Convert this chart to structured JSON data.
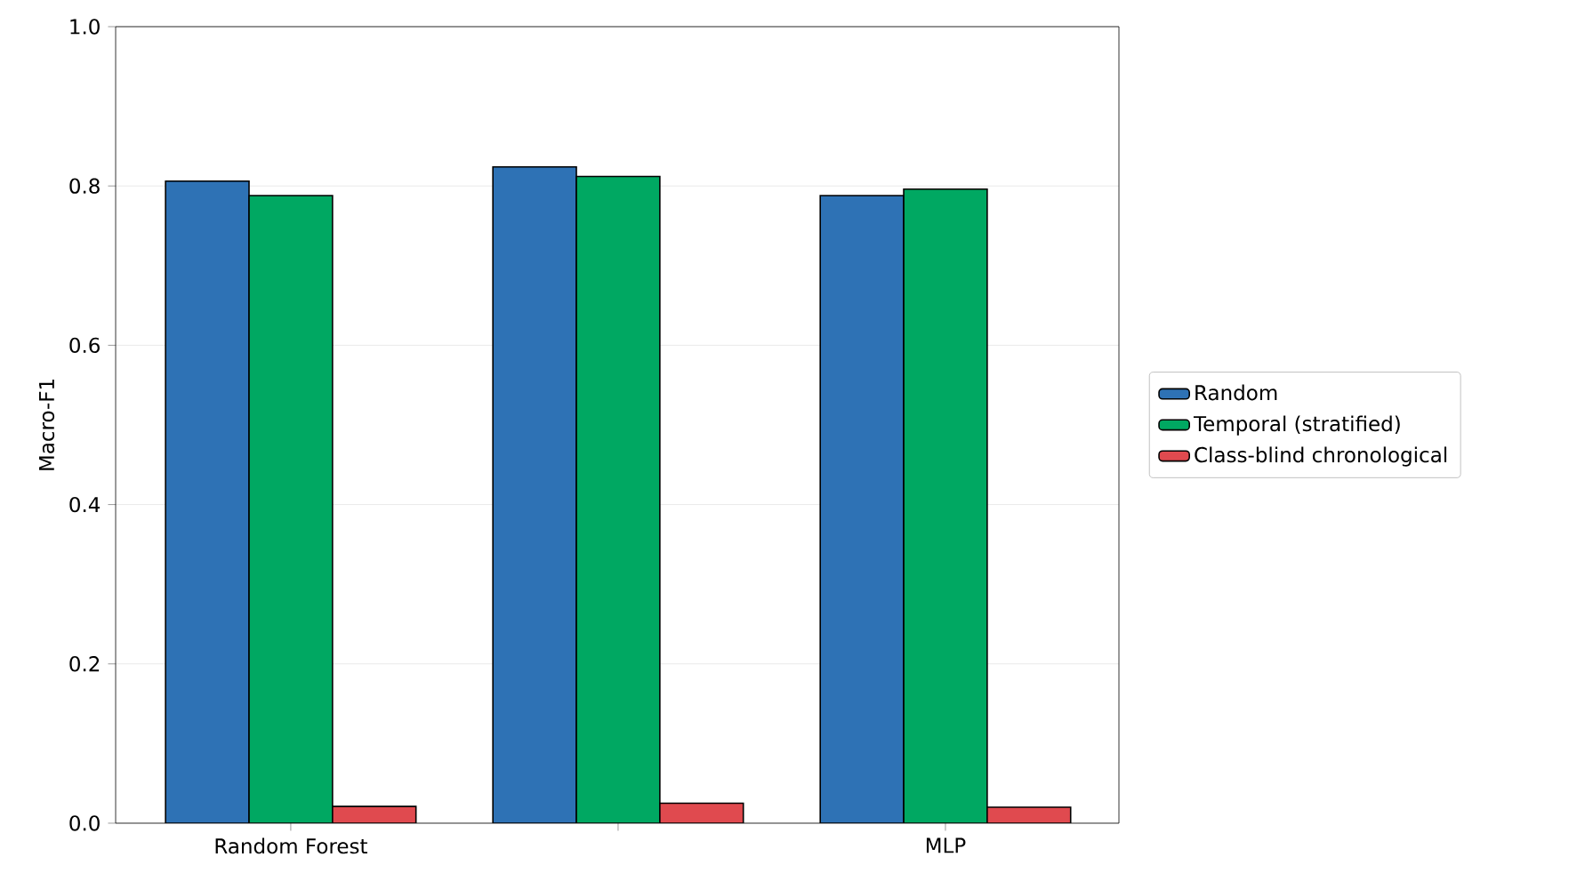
{
  "chart_data": {
    "type": "bar",
    "ylabel": "Macro-F1",
    "categories": [
      "Random Forest",
      null,
      "MLP"
    ],
    "series": [
      {
        "name": "Random",
        "color": "#2e72b5",
        "values": [
          0.806,
          0.824,
          0.788
        ]
      },
      {
        "name": "Temporal (stratified)",
        "color": "#00a862",
        "values": [
          0.788,
          0.812,
          0.796
        ]
      },
      {
        "name": "Class-blind chronological",
        "color": "#e04a4f",
        "values": [
          0.021,
          0.025,
          0.02
        ]
      }
    ],
    "ylim": [
      0,
      1
    ],
    "yticks": [
      {
        "value": 0,
        "label": "0.0"
      },
      {
        "value": 0.2,
        "label": "0.2"
      },
      {
        "value": 0.4,
        "label": "0.4"
      },
      {
        "value": 0.6,
        "label": "0.6"
      },
      {
        "value": 0.8,
        "label": "0.8"
      },
      {
        "value": 1,
        "label": "1.0"
      }
    ],
    "grid": "y",
    "legend": "right"
  }
}
